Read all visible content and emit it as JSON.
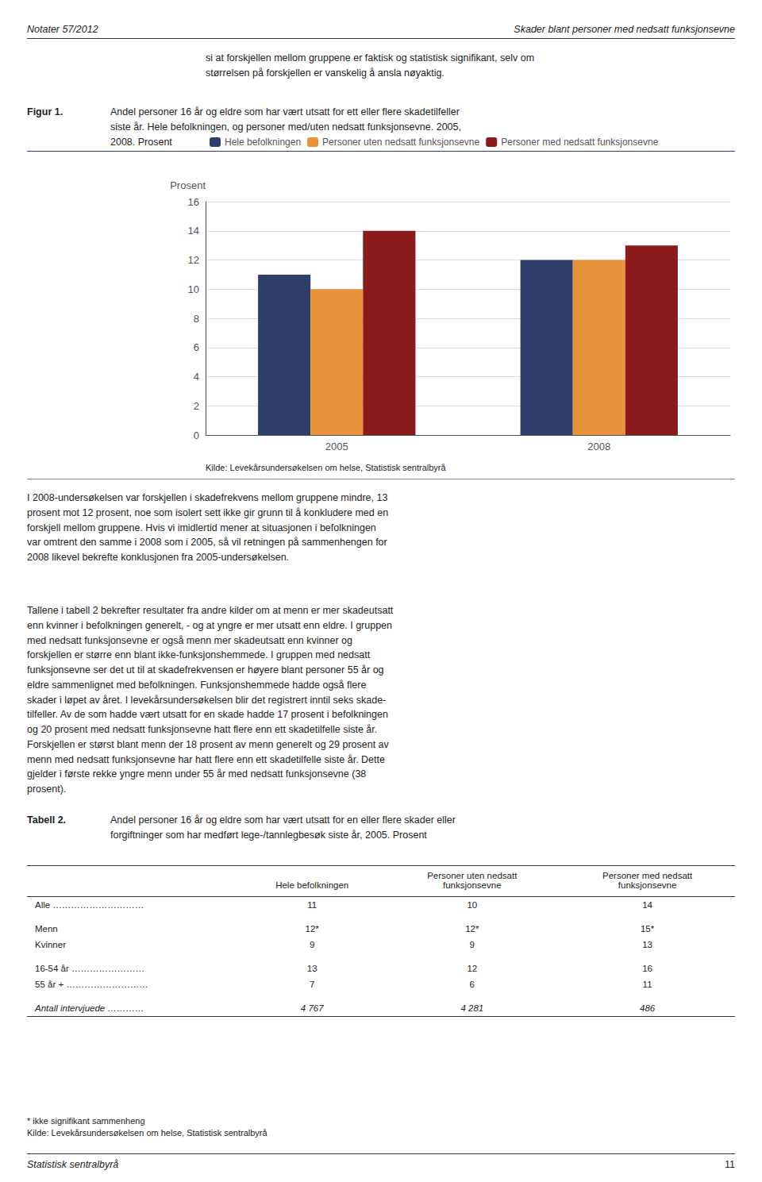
{
  "header_left": "Notater 57/2012",
  "header_right": "Skader blant personer med nedsatt funksjonsevne",
  "intro_text": "si at forskjellen mellom gruppene er faktisk og statistisk signifikant, selv om\nstørrelsen på forskjellen er vanskelig å ansla nøyaktig.",
  "figur_label": "Figur 1.",
  "figur_caption": "Andel personer 16 år og eldre som har vært utsatt for ett eller flere skadetilfeller\nsiste år. Hele befolkningen, og personer med/uten nedsatt funksjonsevne. 2005,\n2008. Prosent",
  "chart_data": {
    "type": "bar",
    "ylabel": "Prosent",
    "categories": [
      "2005",
      "2008"
    ],
    "series": [
      {
        "name": "Hele befolkningen",
        "values": [
          11,
          12
        ],
        "color": "#2E3F6A"
      },
      {
        "name": "Personer uten nedsatt funksjonsevne",
        "values": [
          10,
          12
        ],
        "color": "#E8923A"
      },
      {
        "name": "Personer med nedsatt funksjonsevne",
        "values": [
          14,
          13
        ],
        "color": "#8B1A1A"
      }
    ],
    "ylim": [
      0,
      16
    ],
    "yticks": [
      0,
      2,
      4,
      6,
      8,
      10,
      12,
      14,
      16
    ],
    "grid": true,
    "legend": "upper left"
  },
  "source_text": "Kilde: Levekårsundersøkelsen om helse, Statistisk sentralbyrå",
  "body_text1": "I 2008-undersøkelsen var forskjellen i skadefrekvens mellom gruppene mindre, 13\nprosent mot 12 prosent, noe som isolert sett ikke gir grunn til å konkludere med en\nforskjell mellom gruppene. Hvis vi imidlertid mener at situasjonen i befolkningen\nvar omtrent den samme i 2008 som i 2005, så vil retningen på sammenhengen for\n2008 likevel bekrefte konklusjonen fra 2005-undersøkelsen.",
  "body_text2": "Tallene i tabell 2 bekrefter resultater fra andre kilder om at menn er mer skadeutsatt\nenn kvinner i befolkningen generelt, - og at yngre er mer utsatt enn eldre. I gruppen\nmed nedsatt funksjonsevne er også menn mer skadeutsatt enn kvinner og\nforskjellen er større enn blant ikke-funksjonshemmede. I gruppen med nedsatt\nfunksjonsevne ser det ut til at skadefrekvensen er høyere blant personer 55 år og\neldre sammenlignet med befolkningen. Funksjonshemmede hadde også flere\nskader i løpet av året. I levekårsundersøkelsen blir det registrert inntil seks skade-\ntilfeller. Av de som hadde vært utsatt for en skade hadde 17 prosent i befolkningen\nog 20 prosent med nedsatt funksjonsevne hatt flere enn ett skadetilfelle siste år.\nForskjellen er størst blant menn der 18 prosent av menn generelt og 29 prosent av\nmenn med nedsatt funksjonsevne har hatt flere enn ett skadetilfelle siste år. Dette\ngjelder i første rekke yngre menn under 55 år med nedsatt funksjonsevne (38\nprosent).",
  "tabell_label": "Tabell 2.",
  "tabell_caption": "Andel personer 16 år og eldre som har vært utsatt for en eller flere skader eller\nforgiftninger som har medført lege-/tannlegbesøk siste år, 2005. Prosent",
  "tabell_headers": [
    "Hele befolkningen",
    "Personer uten nedsatt\nfunksjonsevne",
    "Personer med nedsatt\nfunksjonsevne"
  ],
  "tabell_rows": [
    [
      "Alle  …………………………",
      "11",
      "10",
      "14"
    ],
    [
      "Menn",
      "12*",
      "12*",
      "15*"
    ],
    [
      "Kvinner",
      "9",
      "9",
      "13"
    ],
    [
      "16-54 år  ……………………",
      "13",
      "12",
      "16"
    ],
    [
      "55 år +  ………………………",
      "7",
      "6",
      "11"
    ],
    [
      "Antall intervjuede  …………",
      "4 767",
      "4 281",
      "486"
    ]
  ],
  "tabell_footnote": "* ikke signifikant sammenheng\nKilde: Levekårsundersøkelsen om helse, Statistisk sentralbyrå",
  "footer_left": "Statistisk sentralbyrå",
  "footer_right": "11"
}
